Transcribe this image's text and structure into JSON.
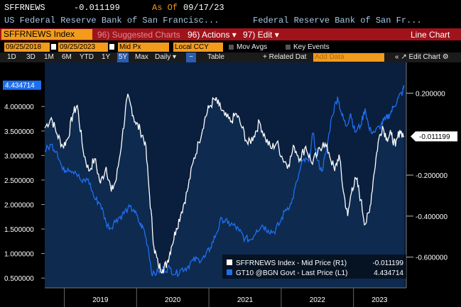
{
  "header": {
    "ticker_code": "SFFRNEWS",
    "last_value": "-0.011199",
    "as_of_label": "As Of",
    "as_of_date": "09/17/23",
    "left_desc": "US Federal Reserve Bank of San Francisc...",
    "right_desc": "Federal Reserve Bank of San Fr..."
  },
  "titlebar": {
    "security": "SFFRNEWS Index",
    "suggested": "96) Suggested Charts",
    "actions": "96) Actions ▾",
    "edit": "97) Edit ▾",
    "chart_type": "Line Chart"
  },
  "controls": {
    "start_date": "09/25/2018",
    "end_date": "09/25/2023",
    "price_field": "Mid Px",
    "currency": "Local CCY",
    "mov_avgs": "Mov Avgs",
    "key_events": "Key Events"
  },
  "periods": {
    "items": [
      "1D",
      "3D",
      "1M",
      "6M",
      "YTD",
      "1Y",
      "5Y",
      "Max"
    ],
    "selected": "5Y",
    "frequency": "Daily ▾",
    "table": "Table",
    "related": "+ Related Dat",
    "add_data": "Add Data",
    "edit_chart": "« ↗ Edit Chart ⚙"
  },
  "colors": {
    "background": "#000000",
    "plot_bg": "#0a1f3d",
    "area_fill": "#0e2a4f",
    "sffrnews_line": "#ffffff",
    "gt10_line": "#1e6ff0",
    "accent_orange": "#f39b1c",
    "titlebar_red": "#a1131b"
  },
  "chart_data": {
    "type": "line",
    "x_range": [
      "2018-09-25",
      "2023-09-25"
    ],
    "x_ticks": [
      "2019",
      "2020",
      "2021",
      "2022",
      "2023"
    ],
    "left_axis": {
      "ticks": [
        "4.000000",
        "3.500000",
        "3.000000",
        "2.500000",
        "2.000000",
        "1.500000",
        "1.000000",
        "0.500000"
      ],
      "ylim": [
        0.3,
        4.9
      ]
    },
    "right_axis": {
      "ticks": [
        "0.200000",
        "-0.200000",
        "-0.400000",
        "-0.600000"
      ],
      "ylim": [
        -0.75,
        0.35
      ]
    },
    "series": [
      {
        "name": "SFFRNEWS Index - Mid Price (R1)",
        "last": "-0.011199",
        "axis": "right",
        "points": [
          [
            2018.73,
            0.03
          ],
          [
            2018.82,
            0.08
          ],
          [
            2018.9,
            0.0
          ],
          [
            2018.98,
            -0.06
          ],
          [
            2019.05,
            -0.02
          ],
          [
            2019.12,
            0.1
          ],
          [
            2019.18,
            0.14
          ],
          [
            2019.26,
            -0.08
          ],
          [
            2019.34,
            -0.18
          ],
          [
            2019.42,
            -0.12
          ],
          [
            2019.5,
            -0.24
          ],
          [
            2019.58,
            -0.16
          ],
          [
            2019.65,
            -0.28
          ],
          [
            2019.72,
            -0.22
          ],
          [
            2019.8,
            -0.02
          ],
          [
            2019.87,
            0.18
          ],
          [
            2019.92,
            0.14
          ],
          [
            2019.98,
            0.06
          ],
          [
            2020.05,
            0.02
          ],
          [
            2020.12,
            -0.04
          ],
          [
            2020.18,
            -0.3
          ],
          [
            2020.24,
            -0.55
          ],
          [
            2020.3,
            -0.64
          ],
          [
            2020.36,
            -0.66
          ],
          [
            2020.42,
            -0.63
          ],
          [
            2020.48,
            -0.55
          ],
          [
            2020.55,
            -0.46
          ],
          [
            2020.62,
            -0.38
          ],
          [
            2020.7,
            -0.28
          ],
          [
            2020.78,
            -0.14
          ],
          [
            2020.86,
            -0.04
          ],
          [
            2020.94,
            0.07
          ],
          [
            2021.0,
            0.13
          ],
          [
            2021.08,
            0.17
          ],
          [
            2021.14,
            0.14
          ],
          [
            2021.22,
            0.09
          ],
          [
            2021.3,
            0.06
          ],
          [
            2021.38,
            0.1
          ],
          [
            2021.46,
            0.03
          ],
          [
            2021.54,
            -0.05
          ],
          [
            2021.62,
            -0.01
          ],
          [
            2021.7,
            0.06
          ],
          [
            2021.78,
            -0.02
          ],
          [
            2021.86,
            -0.07
          ],
          [
            2021.94,
            -0.04
          ],
          [
            2022.02,
            -0.12
          ],
          [
            2022.1,
            -0.15
          ],
          [
            2022.18,
            -0.06
          ],
          [
            2022.26,
            -0.12
          ],
          [
            2022.34,
            -0.06
          ],
          [
            2022.42,
            -0.14
          ],
          [
            2022.5,
            -0.1
          ],
          [
            2022.58,
            -0.04
          ],
          [
            2022.66,
            -0.09
          ],
          [
            2022.74,
            -0.18
          ],
          [
            2022.8,
            -0.1
          ],
          [
            2022.86,
            -0.28
          ],
          [
            2022.92,
            -0.4
          ],
          [
            2022.98,
            -0.26
          ],
          [
            2023.04,
            -0.22
          ],
          [
            2023.1,
            -0.32
          ],
          [
            2023.16,
            -0.44
          ],
          [
            2023.22,
            -0.38
          ],
          [
            2023.28,
            -0.2
          ],
          [
            2023.34,
            -0.04
          ],
          [
            2023.4,
            0.04
          ],
          [
            2023.46,
            -0.02
          ],
          [
            2023.52,
            0.0
          ],
          [
            2023.58,
            -0.06
          ],
          [
            2023.64,
            0.02
          ],
          [
            2023.7,
            -0.011
          ]
        ]
      },
      {
        "name": "GT10 @BGN Govt - Last Price (L1)",
        "last": "4.434714",
        "axis": "left",
        "points": [
          [
            2018.73,
            3.09
          ],
          [
            2018.82,
            3.22
          ],
          [
            2018.9,
            3.08
          ],
          [
            2018.98,
            2.7
          ],
          [
            2019.05,
            2.74
          ],
          [
            2019.15,
            2.68
          ],
          [
            2019.25,
            2.45
          ],
          [
            2019.33,
            2.52
          ],
          [
            2019.42,
            2.12
          ],
          [
            2019.5,
            2.02
          ],
          [
            2019.58,
            1.62
          ],
          [
            2019.64,
            1.52
          ],
          [
            2019.72,
            1.7
          ],
          [
            2019.8,
            1.78
          ],
          [
            2019.88,
            1.92
          ],
          [
            2019.96,
            1.9
          ],
          [
            2020.04,
            1.62
          ],
          [
            2020.1,
            1.5
          ],
          [
            2020.16,
            1.12
          ],
          [
            2020.22,
            0.55
          ],
          [
            2020.3,
            0.64
          ],
          [
            2020.38,
            0.68
          ],
          [
            2020.46,
            0.7
          ],
          [
            2020.54,
            0.58
          ],
          [
            2020.62,
            0.68
          ],
          [
            2020.7,
            0.72
          ],
          [
            2020.78,
            0.86
          ],
          [
            2020.86,
            0.88
          ],
          [
            2020.94,
            0.92
          ],
          [
            2021.02,
            1.12
          ],
          [
            2021.1,
            1.4
          ],
          [
            2021.18,
            1.72
          ],
          [
            2021.26,
            1.62
          ],
          [
            2021.34,
            1.58
          ],
          [
            2021.42,
            1.46
          ],
          [
            2021.5,
            1.3
          ],
          [
            2021.58,
            1.28
          ],
          [
            2021.66,
            1.48
          ],
          [
            2021.74,
            1.58
          ],
          [
            2021.82,
            1.48
          ],
          [
            2021.9,
            1.44
          ],
          [
            2021.98,
            1.62
          ],
          [
            2022.06,
            1.9
          ],
          [
            2022.14,
            2.02
          ],
          [
            2022.22,
            2.48
          ],
          [
            2022.3,
            2.9
          ],
          [
            2022.38,
            2.88
          ],
          [
            2022.44,
            3.46
          ],
          [
            2022.5,
            2.9
          ],
          [
            2022.56,
            2.68
          ],
          [
            2022.62,
            3.05
          ],
          [
            2022.7,
            3.8
          ],
          [
            2022.78,
            4.2
          ],
          [
            2022.84,
            3.82
          ],
          [
            2022.9,
            3.6
          ],
          [
            2022.96,
            3.86
          ],
          [
            2023.02,
            3.48
          ],
          [
            2023.1,
            3.62
          ],
          [
            2023.16,
            3.96
          ],
          [
            2023.22,
            3.52
          ],
          [
            2023.3,
            3.48
          ],
          [
            2023.38,
            3.62
          ],
          [
            2023.44,
            3.74
          ],
          [
            2023.5,
            3.84
          ],
          [
            2023.56,
            4.0
          ],
          [
            2023.62,
            4.18
          ],
          [
            2023.68,
            4.3
          ],
          [
            2023.7,
            4.434714
          ]
        ]
      }
    ],
    "legend_placement": "bottom-right",
    "grid": false
  }
}
